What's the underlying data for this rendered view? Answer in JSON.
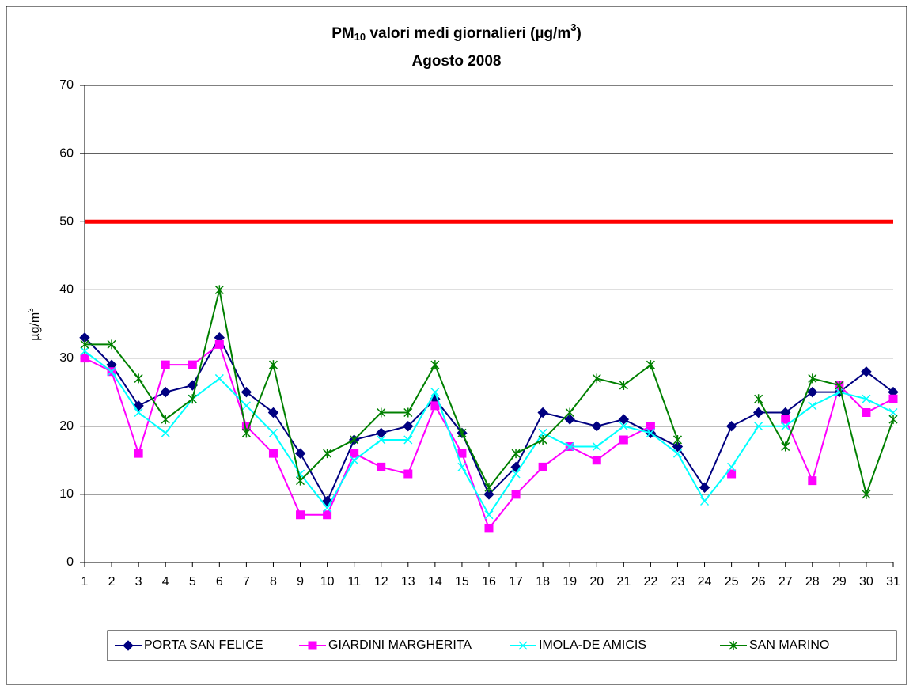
{
  "chart_data": {
    "type": "line",
    "title": {
      "main": "PM",
      "sub": "10",
      "rest": " valori medi giornalieri (µg/m",
      "sup": "3",
      "end": ")"
    },
    "subtitle": "Agosto 2008",
    "y_label": {
      "main": "µg/m",
      "sup": "3"
    },
    "categories": [
      "1",
      "2",
      "3",
      "4",
      "5",
      "6",
      "7",
      "8",
      "9",
      "10",
      "11",
      "12",
      "13",
      "14",
      "15",
      "16",
      "17",
      "18",
      "19",
      "20",
      "21",
      "22",
      "23",
      "24",
      "25",
      "26",
      "27",
      "28",
      "29",
      "30",
      "31"
    ],
    "ylim": [
      0,
      70
    ],
    "yticks": [
      0,
      10,
      20,
      30,
      40,
      50,
      60,
      70
    ],
    "grid": true,
    "threshold": {
      "value": 50,
      "color": "#ff0000"
    },
    "legend": "bottom",
    "series": [
      {
        "name": "PORTA SAN FELICE",
        "color": "#000080",
        "marker": "diamond",
        "values": [
          33,
          29,
          23,
          25,
          26,
          33,
          25,
          22,
          16,
          9,
          18,
          19,
          20,
          24,
          19,
          10,
          14,
          22,
          21,
          20,
          21,
          19,
          17,
          11,
          20,
          22,
          22,
          25,
          25,
          28,
          25
        ]
      },
      {
        "name": "GIARDINI MARGHERITA",
        "color": "#ff00ff",
        "marker": "square",
        "values": [
          30,
          28,
          16,
          29,
          29,
          32,
          20,
          16,
          7,
          7,
          16,
          14,
          13,
          23,
          16,
          5,
          10,
          14,
          17,
          15,
          18,
          20,
          null,
          null,
          13,
          null,
          21,
          12,
          26,
          22,
          24
        ]
      },
      {
        "name": "IMOLA-DE AMICIS",
        "color": "#00ffff",
        "marker": "x",
        "values": [
          31,
          28,
          22,
          19,
          24,
          27,
          23,
          19,
          13,
          8,
          15,
          18,
          18,
          25,
          14,
          7,
          13,
          19,
          17,
          17,
          20,
          19,
          16,
          9,
          14,
          20,
          20,
          23,
          25,
          24,
          22
        ]
      },
      {
        "name": "SAN MARINO",
        "color": "#008000",
        "marker": "star",
        "values": [
          32,
          32,
          27,
          21,
          24,
          40,
          19,
          29,
          12,
          16,
          18,
          22,
          22,
          29,
          19,
          11,
          16,
          18,
          22,
          27,
          26,
          29,
          18,
          null,
          null,
          24,
          17,
          27,
          26,
          10,
          21
        ]
      }
    ]
  }
}
